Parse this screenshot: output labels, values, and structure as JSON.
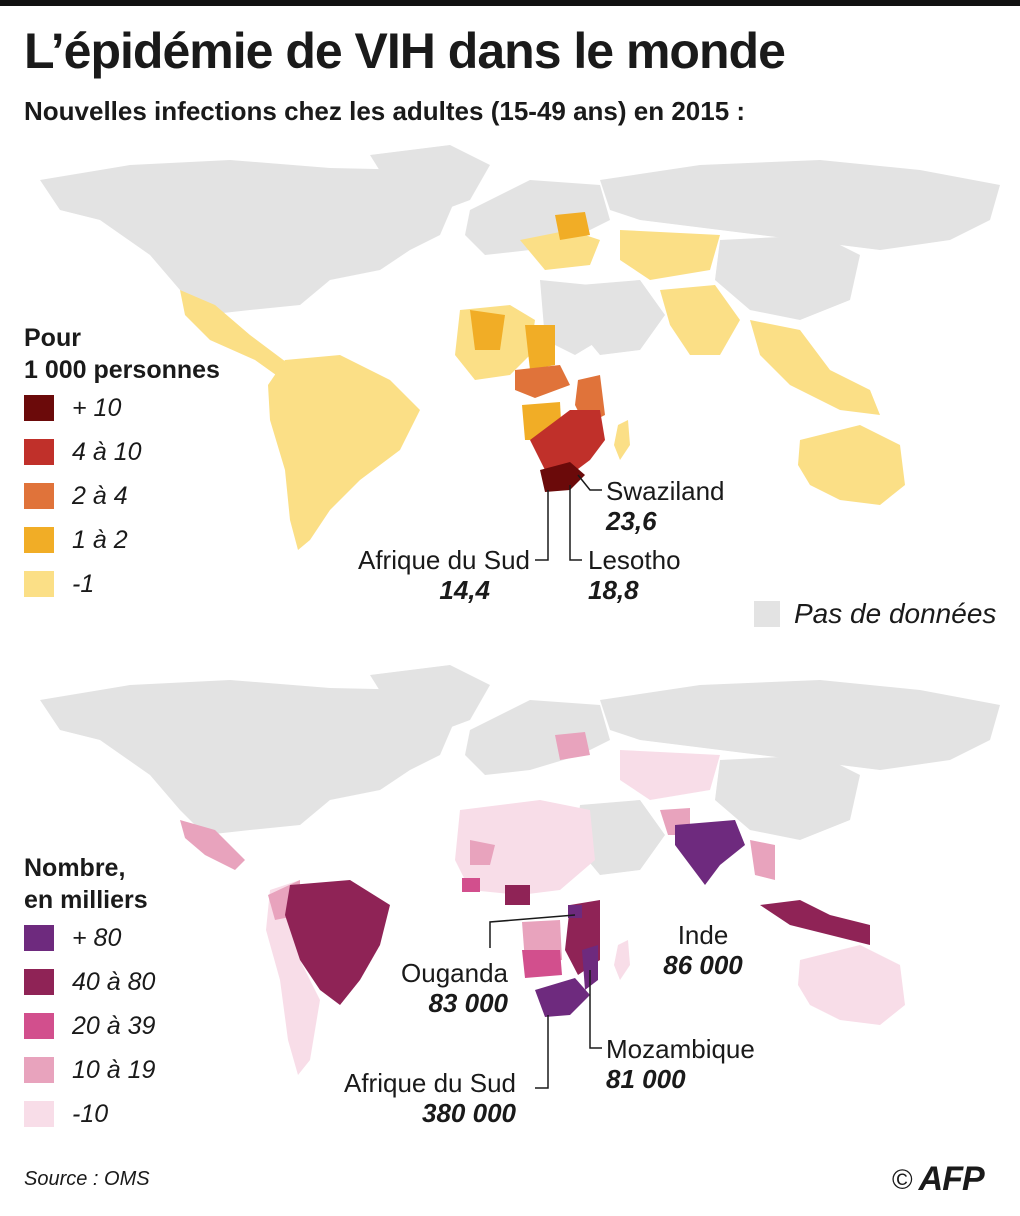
{
  "header": {
    "title": "L’épidémie de VIH dans le monde",
    "subtitle": "Nouvelles infections chez les adultes (15-49 ans) en 2015 :"
  },
  "map_rate": {
    "legend_title_line1": "Pour",
    "legend_title_line2": "1 000 personnes",
    "legend": [
      {
        "label": "+ 10",
        "color": "#6b0a0a"
      },
      {
        "label": "4 à 10",
        "color": "#c0302a"
      },
      {
        "label": "2 à 4",
        "color": "#e0733a"
      },
      {
        "label": " 1 à 2",
        "color": "#f1ad26"
      },
      {
        "label": "-1",
        "color": "#fbdf86"
      }
    ],
    "no_data_label": "Pas de données",
    "no_data_color": "#e3e3e3",
    "annotations": [
      {
        "name": "Swaziland",
        "value": "23,6"
      },
      {
        "name": "Afrique du Sud",
        "value": "14,4"
      },
      {
        "name": "Lesotho",
        "value": "18,8"
      }
    ]
  },
  "map_count": {
    "legend_title_line1": "Nombre,",
    "legend_title_line2": "en milliers",
    "legend": [
      {
        "label": "+ 80",
        "color": "#6e2a7e"
      },
      {
        "label": "40 à 80",
        "color": "#8f2356"
      },
      {
        "label": "20 à 39",
        "color": "#d24f8d"
      },
      {
        "label": " 10 à 19",
        "color": "#e8a3bd"
      },
      {
        "label": "-10",
        "color": "#f8dde8"
      }
    ],
    "annotations": [
      {
        "name": "Ouganda",
        "value": "83 000"
      },
      {
        "name": "Inde",
        "value": "86 000"
      },
      {
        "name": "Mozambique",
        "value": "81 000"
      },
      {
        "name": "Afrique du Sud",
        "value": "380 000"
      }
    ]
  },
  "footer": {
    "source": "Source : OMS",
    "copyright": "©",
    "agency": "AFP"
  }
}
